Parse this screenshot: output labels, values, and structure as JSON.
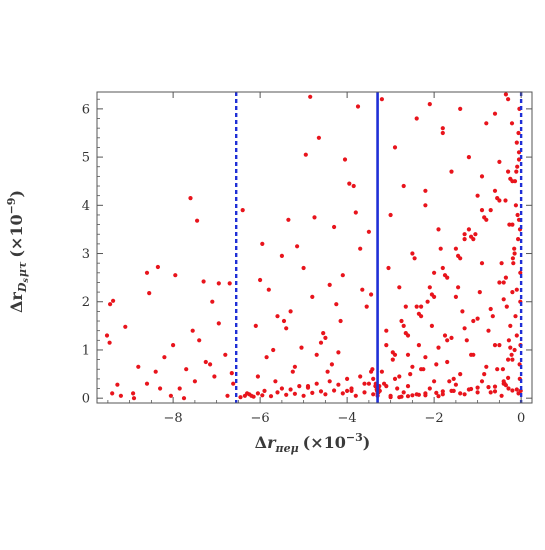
{
  "chart_data": {
    "type": "scatter",
    "xlabel": {
      "prefix": "Δ",
      "symbol": "r",
      "subscript": "πeμ",
      "factor_text": "(×10",
      "factor_exp": "−3",
      "close": ")"
    },
    "ylabel": {
      "prefix": "Δ",
      "symbol": "r",
      "subscript_main": "D",
      "subscript_sub": "s",
      "subscript_rest": "μτ",
      "factor_text": "(×10",
      "factor_exp": "−9",
      "close": ")"
    },
    "xlim": [
      -9.75,
      0.25
    ],
    "ylim": [
      -0.1,
      6.35
    ],
    "xticks": [
      -8,
      -6,
      -4,
      -2,
      0
    ],
    "xtick_labels": [
      "−8",
      "−6",
      "−4",
      "−2",
      "0"
    ],
    "yticks": [
      0,
      1,
      2,
      3,
      4,
      5,
      6
    ],
    "ytick_labels": [
      "0",
      "1",
      "2",
      "3",
      "4",
      "5",
      "6"
    ],
    "grid": false,
    "marker_color": "#e8141c",
    "reference_lines": [
      {
        "x": -6.55,
        "style": "dashed",
        "color": "#1f2fd6"
      },
      {
        "x": -3.3,
        "style": "solid",
        "color": "#1f2fd6"
      },
      {
        "x": 0.0,
        "style": "dashed",
        "color": "#1f2fd6"
      }
    ],
    "series": [
      {
        "points_note": "",
        "x": [
          -9.52,
          -9.45,
          -9.38,
          -9.46,
          -9.1,
          -9.28,
          -8.92,
          -8.6,
          -8.55,
          -8.35,
          -8.05,
          -7.95,
          -7.75,
          -7.6,
          -7.45,
          -7.3,
          -7.05,
          -6.95,
          -6.75,
          -6.7,
          -6.65,
          -9.4,
          -9.2,
          -8.8,
          -8.6,
          -8.4,
          -8.2,
          -8.0,
          -7.85,
          -7.7,
          -7.55,
          -7.4,
          -7.25,
          -7.1,
          -6.95,
          -6.8,
          -6.62,
          -8.9,
          -8.3,
          -7.5,
          -7.15,
          -6.4,
          -6.2,
          -6.0,
          -5.8,
          -5.6,
          -5.45,
          -5.3,
          -5.15,
          -5.0,
          -4.85,
          -4.7,
          -4.55,
          -4.4,
          -4.25,
          -4.1,
          -3.95,
          -3.8,
          -3.65,
          -3.5,
          -3.4,
          -6.3,
          -6.05,
          -5.7,
          -5.5,
          -5.25,
          -5.05,
          -4.9,
          -4.75,
          -4.5,
          -4.35,
          -4.15,
          -4.0,
          -3.85,
          -3.7,
          -3.55,
          -5.95,
          -5.35,
          -4.95,
          -4.65,
          -4.3,
          -4.05,
          -3.75,
          -3.45,
          -6.1,
          -5.85,
          -5.65,
          -5.4,
          -5.2,
          -4.8,
          -4.6,
          -4.45,
          -4.2,
          -3.9,
          -3.6,
          -3.42,
          -6.45,
          -6.35,
          -6.25,
          -6.15,
          -6.05,
          -5.95,
          -5.9,
          -5.75,
          -5.6,
          -5.5,
          -5.4,
          -5.3,
          -5.2,
          -5.1,
          -5.0,
          -4.9,
          -4.8,
          -4.7,
          -4.6,
          -4.5,
          -4.4,
          -4.3,
          -4.2,
          -4.1,
          -4.0,
          -3.9,
          -3.8,
          -3.7,
          -3.6,
          -3.5,
          -3.45,
          -3.4,
          -3.35,
          -3.2,
          -3.1,
          -3.0,
          -2.9,
          -2.8,
          -2.7,
          -2.6,
          -2.5,
          -2.4,
          -2.3,
          -2.2,
          -2.1,
          -2.0,
          -1.9,
          -1.8,
          -1.7,
          -1.6,
          -1.5,
          -1.4,
          -1.3,
          -1.2,
          -1.1,
          -1.0,
          -0.9,
          -0.8,
          -0.7,
          -0.6,
          -0.5,
          -0.4,
          -0.3,
          -0.2,
          -0.1,
          -3.15,
          -2.95,
          -2.75,
          -2.55,
          -2.35,
          -2.15,
          -1.95,
          -1.75,
          -1.55,
          -1.35,
          -1.15,
          -0.95,
          -0.75,
          -0.55,
          -0.35,
          -0.15,
          -3.05,
          -2.85,
          -2.65,
          -2.45,
          -2.25,
          -2.05,
          -1.85,
          -1.65,
          -1.45,
          -1.25,
          -1.05,
          -0.85,
          -0.65,
          -0.45,
          -0.25,
          -0.05,
          -3.25,
          -2.9,
          -2.6,
          -2.3,
          -2.0,
          -1.7,
          -1.4,
          -1.1,
          -0.8,
          -0.5,
          -0.2,
          -3.0,
          -2.7,
          -2.4,
          -2.1,
          -1.8,
          -1.5,
          -1.2,
          -0.9,
          -0.6,
          -0.3,
          -2.8,
          -2.5,
          -2.2,
          -1.9,
          -1.6,
          -1.3,
          -1.0,
          -0.7,
          -0.4,
          -0.1,
          -2.2,
          -1.8,
          -1.3,
          -0.9,
          -0.6,
          -0.35,
          -0.15,
          -0.45,
          -0.38,
          -0.3,
          -0.25,
          -0.2,
          -0.16,
          -0.12,
          -0.09,
          -0.06,
          -0.04,
          -0.02,
          -0.01,
          -0.42,
          -0.33,
          -0.27,
          -0.22,
          -0.18,
          -0.14,
          -0.1,
          -0.07,
          -0.05,
          -0.03,
          -0.015,
          -0.5,
          -0.36,
          -0.29,
          -0.21,
          -0.13,
          -0.08,
          -0.035,
          -0.02,
          -0.4,
          -0.28,
          -0.19,
          -0.11,
          -0.06,
          -0.025,
          -2.9,
          -2.6,
          -2.3,
          -2.0,
          -1.7,
          -1.4,
          -1.1,
          -0.8,
          -0.5,
          -0.2,
          -3.1,
          -2.7,
          -2.4,
          -2.1,
          -1.8,
          -1.5,
          -1.2,
          -0.9,
          -0.6,
          -0.3,
          -3.2,
          -2.95,
          -2.65,
          -2.35,
          -2.05,
          -1.75,
          -1.45,
          -1.15,
          -0.85,
          -0.55,
          -0.25,
          -0.05,
          -3.1,
          -2.8,
          -2.5,
          -2.2,
          -1.9,
          -1.6,
          -1.3,
          -1.0,
          -0.7,
          -0.4,
          -0.1,
          -3.0,
          -2.6,
          -2.2,
          -1.8,
          -1.4,
          -1.0,
          -0.6,
          -0.2,
          -2.75,
          -2.35,
          -1.95,
          -1.55,
          -1.15,
          -0.75,
          -0.35,
          -3.3,
          -3.28,
          -3.32,
          -3.26,
          -3.34,
          -3.3,
          -3.28,
          -3.31
        ],
        "y": [
          1.3,
          1.95,
          2.02,
          1.15,
          1.48,
          0.28,
          0.1,
          2.6,
          2.18,
          2.72,
          0.05,
          2.55,
          0.0,
          4.15,
          3.68,
          2.42,
          0.45,
          2.38,
          0.05,
          2.38,
          0.52,
          0.1,
          0.05,
          0.65,
          0.3,
          0.55,
          0.85,
          1.1,
          0.2,
          0.6,
          1.4,
          1.2,
          0.75,
          2.0,
          1.55,
          0.9,
          0.3,
          0.0,
          0.2,
          0.35,
          0.7,
          3.9,
          0.05,
          2.45,
          2.25,
          1.7,
          1.6,
          1.8,
          3.15,
          2.7,
          6.25,
          0.9,
          1.35,
          2.35,
          1.95,
          2.55,
          4.45,
          3.85,
          2.25,
          3.45,
          0.4,
          0.1,
          0.45,
          1.0,
          2.95,
          0.55,
          1.05,
          0.25,
          3.75,
          1.25,
          0.7,
          1.6,
          0.15,
          4.4,
          3.1,
          1.9,
          3.2,
          3.7,
          5.05,
          5.4,
          3.55,
          4.95,
          6.05,
          2.15,
          1.5,
          0.85,
          0.35,
          1.45,
          0.65,
          2.1,
          1.15,
          0.55,
          0.95,
          0.15,
          0.3,
          0.6,
          0.02,
          0.05,
          0.08,
          0.03,
          0.1,
          0.06,
          0.15,
          0.04,
          0.12,
          0.2,
          0.07,
          0.18,
          0.09,
          0.25,
          0.05,
          0.22,
          0.11,
          0.3,
          0.14,
          0.08,
          0.35,
          0.16,
          0.28,
          0.1,
          0.4,
          0.2,
          0.05,
          0.45,
          0.12,
          0.3,
          0.55,
          0.08,
          0.25,
          6.2,
          1.4,
          3.8,
          5.2,
          2.3,
          4.4,
          0.9,
          3.0,
          5.8,
          1.9,
          4.0,
          6.1,
          2.6,
          3.5,
          5.5,
          1.2,
          4.7,
          2.1,
          6.0,
          3.3,
          5.0,
          1.6,
          4.2,
          2.8,
          5.7,
          3.9,
          1.1,
          4.9,
          2.4,
          6.2,
          3.6,
          5.3,
          0.3,
          0.8,
          1.6,
          0.5,
          1.1,
          2.0,
          0.7,
          1.3,
          0.4,
          1.8,
          0.9,
          2.2,
          1.4,
          0.6,
          2.5,
          1.0,
          2.7,
          0.2,
          1.9,
          2.9,
          0.6,
          1.5,
          3.1,
          0.35,
          2.3,
          1.2,
          3.4,
          0.5,
          1.7,
          2.8,
          1.05,
          3.7,
          0.15,
          0.4,
          0.25,
          0.6,
          0.35,
          0.75,
          0.5,
          0.9,
          0.65,
          1.1,
          0.8,
          0.05,
          0.12,
          0.08,
          0.2,
          0.14,
          0.28,
          0.18,
          0.35,
          0.24,
          0.42,
          0.02,
          0.06,
          0.1,
          0.04,
          0.15,
          0.08,
          0.22,
          0.12,
          0.3,
          0.18,
          4.3,
          5.6,
          3.4,
          4.6,
          5.9,
          6.3,
          3.0,
          0.05,
          0.3,
          0.8,
          1.5,
          2.2,
          3.1,
          4.0,
          4.8,
          5.5,
          6.0,
          2.6,
          0.15,
          0.6,
          1.9,
          3.6,
          0.9,
          2.8,
          4.5,
          1.3,
          3.3,
          5.1,
          0.4,
          1.1,
          2.4,
          4.1,
          0.2,
          5.7,
          1.7,
          3.8,
          0.7,
          2.0,
          0.35,
          1.2,
          2.9,
          4.7,
          0.1,
          3.5,
          0.9,
          1.3,
          1.7,
          2.1,
          2.5,
          2.9,
          3.3,
          3.7,
          4.1,
          4.5,
          1.1,
          1.5,
          1.9,
          2.3,
          2.7,
          3.1,
          3.5,
          3.9,
          4.3,
          4.7,
          0.55,
          0.95,
          1.35,
          1.75,
          2.15,
          2.55,
          2.95,
          3.35,
          3.75,
          4.15,
          4.55,
          4.95,
          0.25,
          0.45,
          0.65,
          0.85,
          1.05,
          1.25,
          1.45,
          1.65,
          1.85,
          2.05,
          2.25,
          0.02,
          0.04,
          0.06,
          0.08,
          0.1,
          0.12,
          0.14,
          0.16,
          0.03,
          0.07,
          0.11,
          0.15,
          0.19,
          0.23,
          0.27,
          0.05,
          0.12,
          0.18,
          0.25,
          0.3,
          0.1,
          0.2,
          0.15
        ]
      }
    ]
  }
}
